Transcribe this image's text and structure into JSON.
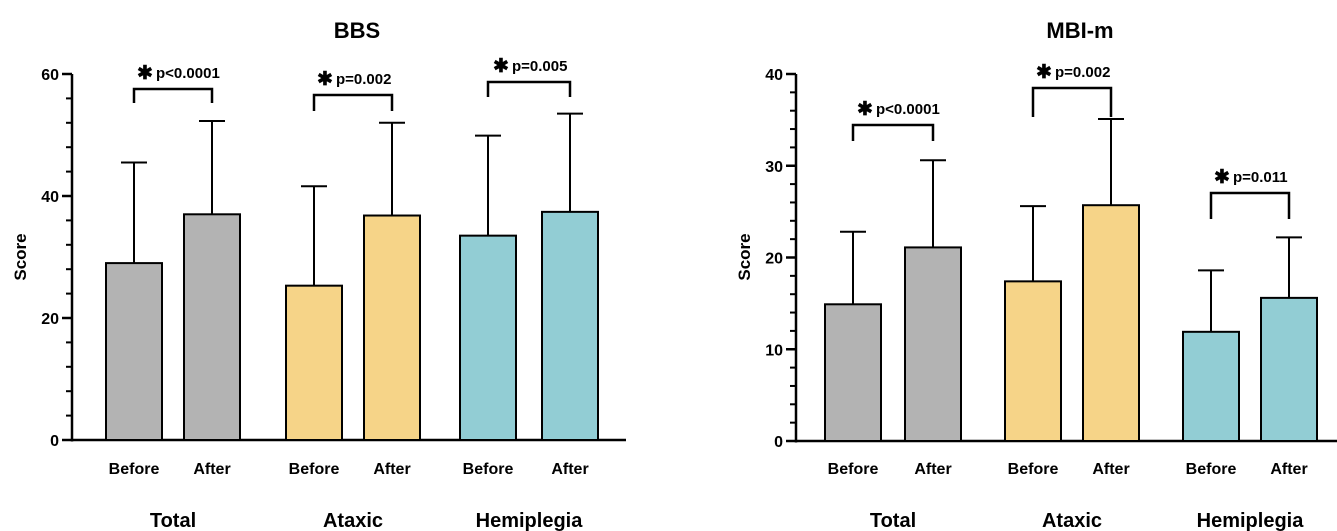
{
  "chart_data": [
    {
      "type": "bar",
      "title": "BBS",
      "ylabel": "Score",
      "ylim": [
        0,
        60
      ],
      "yticks": [
        0,
        20,
        40,
        60
      ],
      "groups": [
        "Total",
        "Ataxic",
        "Hemiplegia"
      ],
      "bar_labels": [
        "Before",
        "After"
      ],
      "bars": [
        {
          "group": "Total",
          "label": "Before",
          "mean": 29,
          "sd": 16.5
        },
        {
          "group": "Total",
          "label": "After",
          "mean": 37,
          "sd": 15.3
        },
        {
          "group": "Ataxic",
          "label": "Before",
          "mean": 25.3,
          "sd": 16.3
        },
        {
          "group": "Ataxic",
          "label": "After",
          "mean": 36.8,
          "sd": 15.2
        },
        {
          "group": "Hemiplegia",
          "label": "Before",
          "mean": 33.5,
          "sd": 16.4
        },
        {
          "group": "Hemiplegia",
          "label": "After",
          "mean": 37.4,
          "sd": 16.1
        }
      ],
      "significance": [
        {
          "group": "Total",
          "text": "p<0.0001"
        },
        {
          "group": "Ataxic",
          "text": "p=0.002"
        },
        {
          "group": "Hemiplegia",
          "text": "p=0.005"
        }
      ]
    },
    {
      "type": "bar",
      "title": "MBI-m",
      "ylabel": "Score",
      "ylim": [
        0,
        40
      ],
      "yticks": [
        0,
        10,
        20,
        30,
        40
      ],
      "groups": [
        "Total",
        "Ataxic",
        "Hemiplegia"
      ],
      "bar_labels": [
        "Before",
        "After"
      ],
      "bars": [
        {
          "group": "Total",
          "label": "Before",
          "mean": 14.9,
          "sd": 7.9
        },
        {
          "group": "Total",
          "label": "After",
          "mean": 21.1,
          "sd": 9.5
        },
        {
          "group": "Ataxic",
          "label": "Before",
          "mean": 17.4,
          "sd": 8.2
        },
        {
          "group": "Ataxic",
          "label": "After",
          "mean": 25.7,
          "sd": 9.4
        },
        {
          "group": "Hemiplegia",
          "label": "Before",
          "mean": 11.9,
          "sd": 6.7
        },
        {
          "group": "Hemiplegia",
          "label": "After",
          "mean": 15.6,
          "sd": 6.6
        }
      ],
      "significance": [
        {
          "group": "Total",
          "text": "p<0.0001"
        },
        {
          "group": "Ataxic",
          "text": "p=0.002"
        },
        {
          "group": "Hemiplegia",
          "text": "p=0.011"
        }
      ]
    }
  ],
  "colors": {
    "Total": "#b3b3b3",
    "Ataxic": "#f6d488",
    "Hemiplegia": "#92cdd4"
  },
  "significance_marker": "✱"
}
